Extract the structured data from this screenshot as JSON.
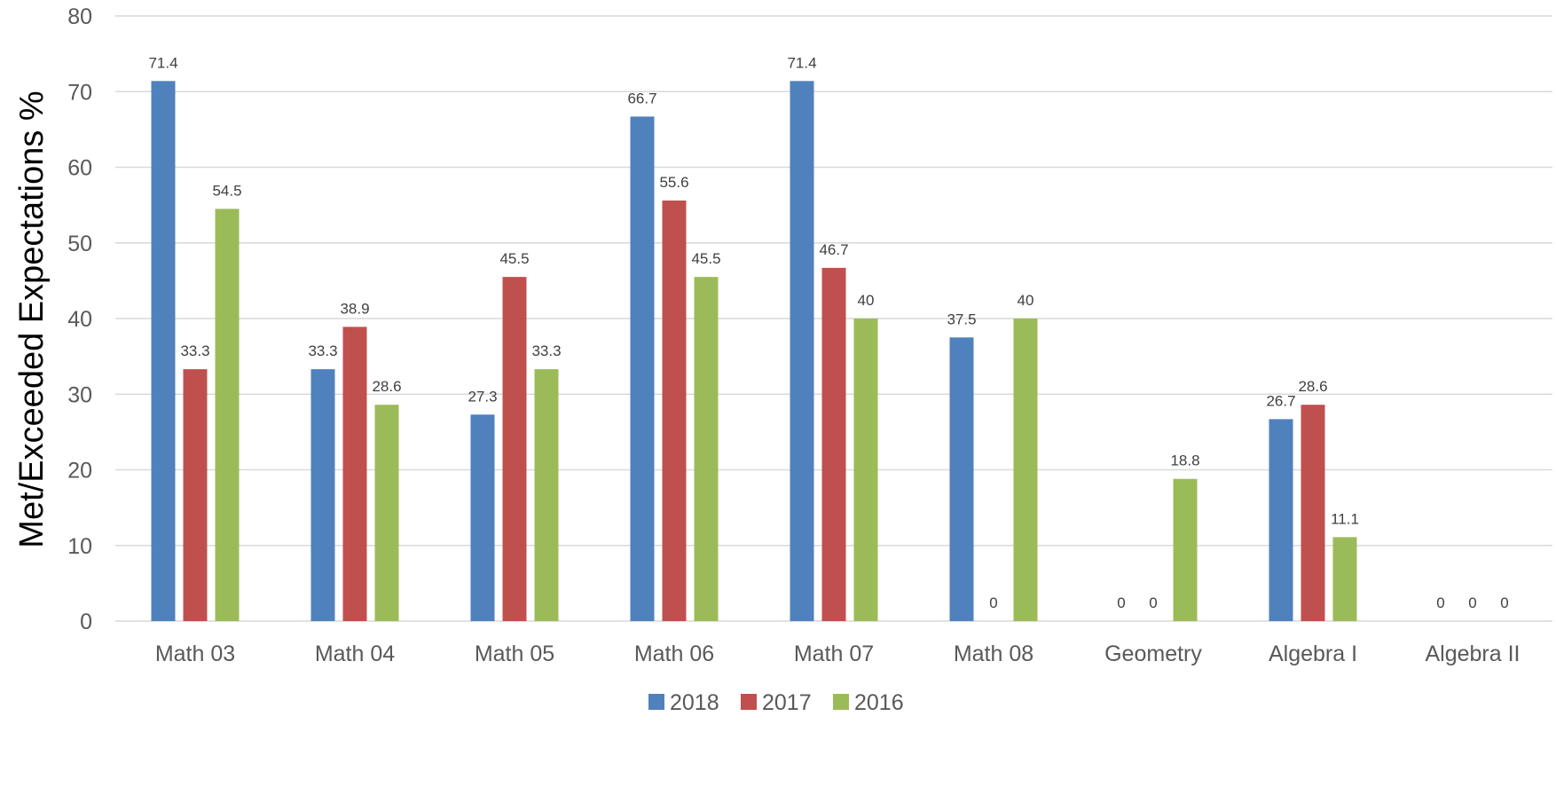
{
  "chart_data": {
    "type": "bar",
    "title": "",
    "xlabel": "",
    "ylabel": "Met/Exceeded Expectations %",
    "ylim": [
      0,
      80
    ],
    "yticks": [
      0,
      10,
      20,
      30,
      40,
      50,
      60,
      70,
      80
    ],
    "grid": true,
    "legend_position": "bottom",
    "categories": [
      "Math 03",
      "Math 04",
      "Math 05",
      "Math 06",
      "Math 07",
      "Math 08",
      "Geometry",
      "Algebra I",
      "Algebra II"
    ],
    "series": [
      {
        "name": "2018",
        "color": "#4f81bd",
        "values": [
          71.4,
          33.3,
          27.3,
          66.7,
          71.4,
          37.5,
          0,
          26.7,
          0
        ]
      },
      {
        "name": "2017",
        "color": "#c0504d",
        "values": [
          33.3,
          38.9,
          45.5,
          55.6,
          46.7,
          0,
          0,
          28.6,
          0
        ]
      },
      {
        "name": "2016",
        "color": "#9bbb59",
        "values": [
          54.5,
          28.6,
          33.3,
          45.5,
          40,
          40,
          18.8,
          11.1,
          0
        ]
      }
    ],
    "data_labels": [
      [
        "71.4",
        "33.3",
        "27.3",
        "66.7",
        "71.4",
        "37.5",
        "0",
        "26.7",
        "0"
      ],
      [
        "33.3",
        "38.9",
        "45.5",
        "55.6",
        "46.7",
        "0",
        "0",
        "28.6",
        "0"
      ],
      [
        "54.5",
        "28.6",
        "33.3",
        "45.5",
        "40",
        "40",
        "18.8",
        "11.1",
        "0"
      ]
    ]
  }
}
